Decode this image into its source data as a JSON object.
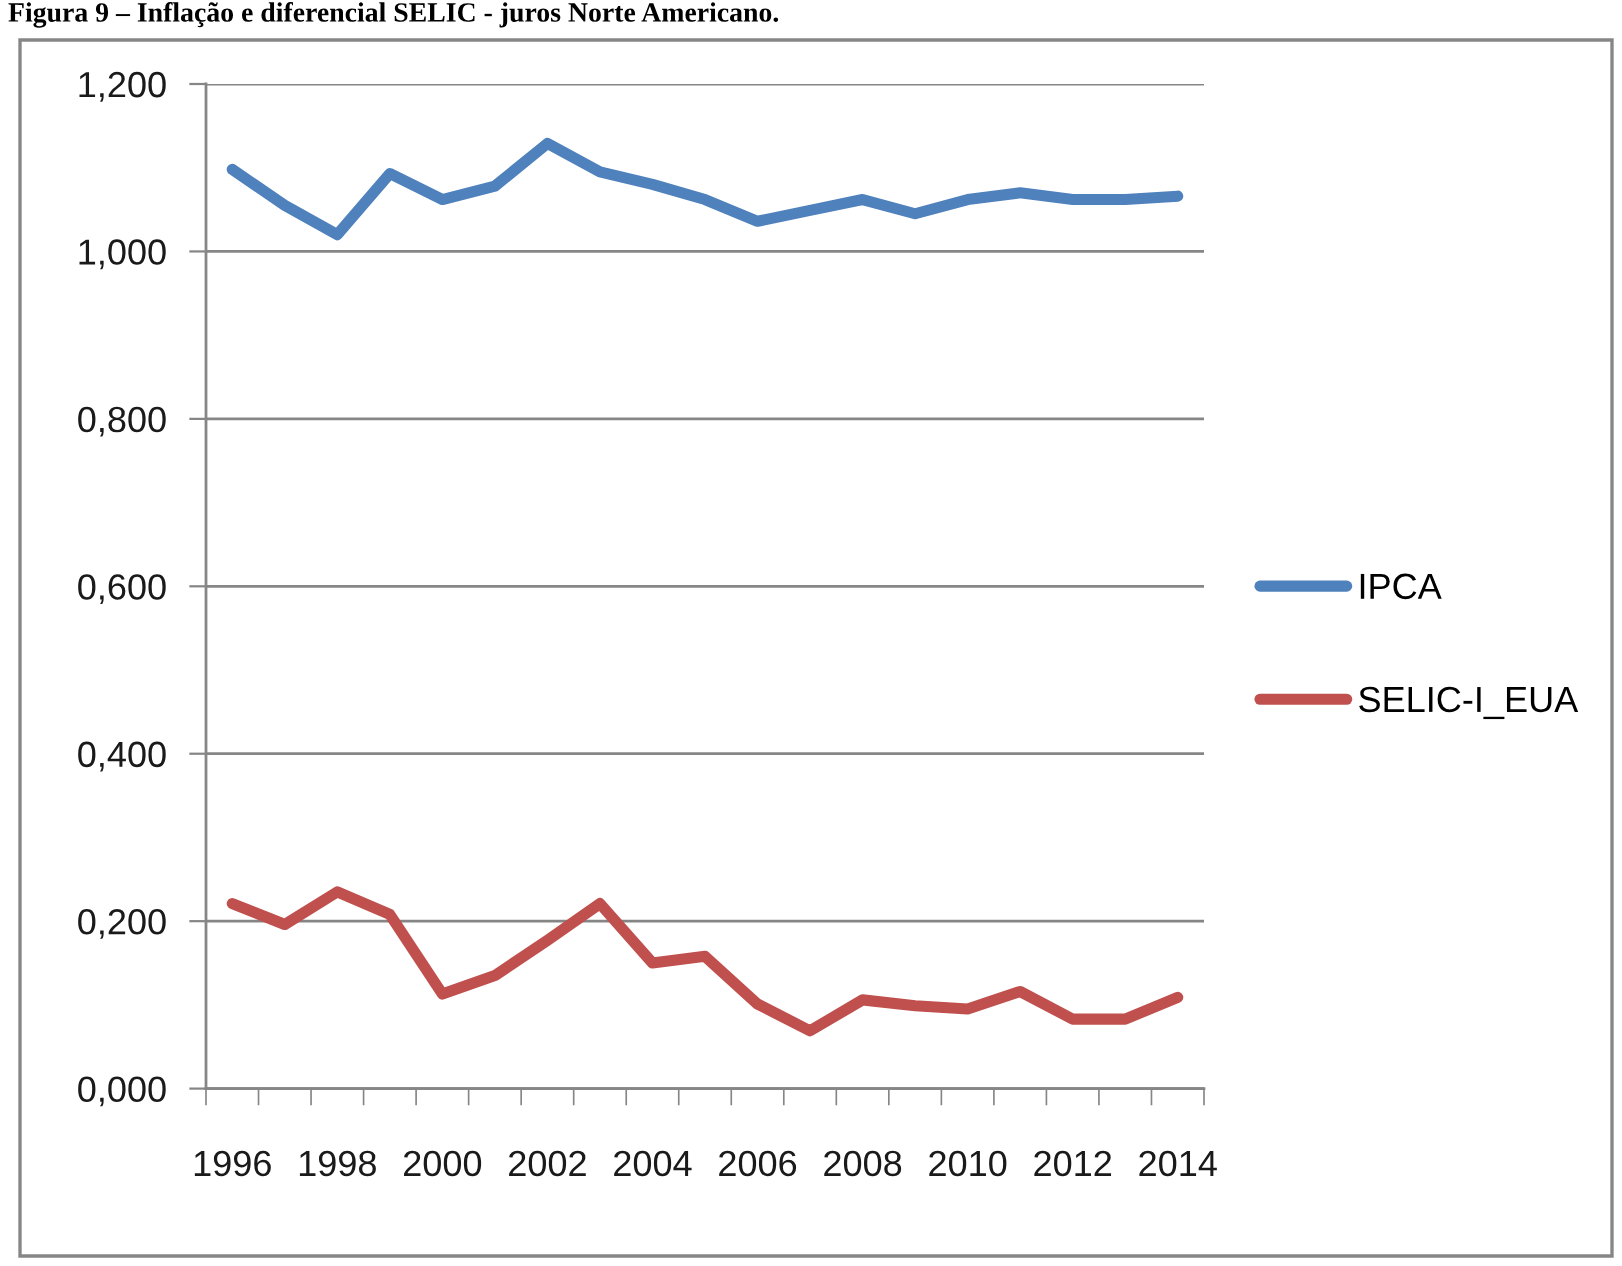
{
  "chart_data": {
    "type": "line",
    "title": "Figura 9 – Inflação e diferencial SELIC - juros Norte Americano.",
    "categories": [
      "1996",
      null,
      "1998",
      null,
      "2000",
      null,
      "2002",
      null,
      "2004",
      null,
      "2006",
      null,
      "2008",
      null,
      "2010",
      null,
      "2012",
      null,
      "2014"
    ],
    "series": [
      {
        "name": "IPCA",
        "color": "#4f81bd",
        "values": [
          1.098,
          1.055,
          1.02,
          1.093,
          1.062,
          1.078,
          1.129,
          1.095,
          1.08,
          1.062,
          1.036,
          1.049,
          1.062,
          1.045,
          1.062,
          1.07,
          1.062,
          1.062,
          1.066
        ]
      },
      {
        "name": "SELIC-I_EUA",
        "color": "#c0504d",
        "values": [
          0.221,
          0.196,
          0.235,
          0.208,
          0.113,
          0.135,
          0.177,
          0.221,
          0.15,
          0.158,
          0.101,
          0.069,
          0.106,
          0.099,
          0.095,
          0.116,
          0.083,
          0.083,
          0.109
        ]
      }
    ],
    "ylim": [
      0,
      1.2
    ],
    "yticks": [
      {
        "value": 0,
        "label": "0,000"
      },
      {
        "value": 0.2,
        "label": "0,200"
      },
      {
        "value": 0.4,
        "label": "0,400"
      },
      {
        "value": 0.6,
        "label": "0,600"
      },
      {
        "value": 0.8,
        "label": "0,800"
      },
      {
        "value": 1.0,
        "label": "1,000"
      },
      {
        "value": 1.2,
        "label": "1,200"
      }
    ],
    "grid": "y",
    "legend": "right",
    "line_style": "solid"
  }
}
